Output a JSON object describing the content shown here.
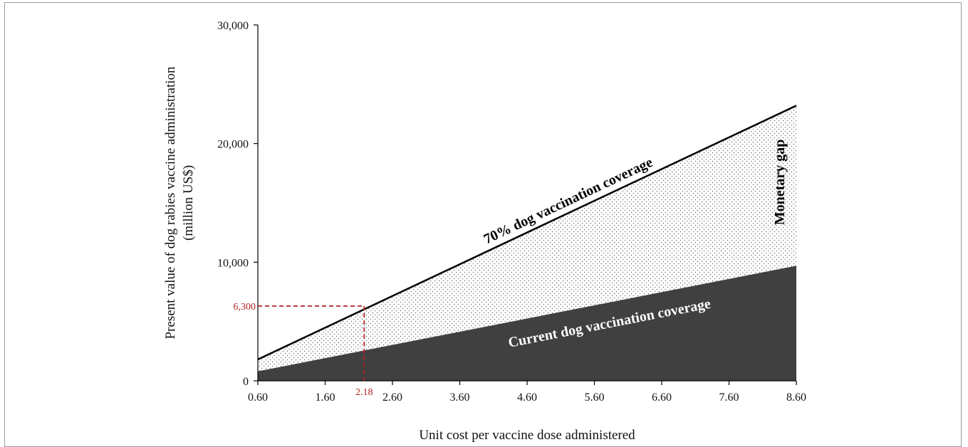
{
  "chart_data": {
    "type": "area",
    "title": "",
    "xlabel": "Unit cost per vaccine dose administered",
    "ylabel_line1": "Present value of dog rabies vaccine administration",
    "ylabel_line2": "(million US$)",
    "x": [
      0.6,
      8.6
    ],
    "xlim": [
      0.6,
      8.6
    ],
    "ylim": [
      0,
      30000
    ],
    "x_ticks": [
      "0.60",
      "1.60",
      "2.60",
      "3.60",
      "4.60",
      "5.60",
      "6.60",
      "7.60",
      "8.60"
    ],
    "x_tick_values": [
      0.6,
      1.6,
      2.6,
      3.6,
      4.6,
      5.6,
      6.6,
      7.6,
      8.6
    ],
    "y_ticks": [
      "0",
      "10,000",
      "20,000",
      "30,000"
    ],
    "y_tick_values": [
      0,
      10000,
      20000,
      30000
    ],
    "grid": false,
    "series": [
      {
        "name": "70% dog vaccination coverage",
        "values": [
          1800,
          23200
        ],
        "style": "line",
        "color": "#000000"
      },
      {
        "name": "Current dog vaccination coverage",
        "values": [
          800,
          9700
        ],
        "style": "filled-area",
        "color": "#404040"
      }
    ],
    "gap_region": {
      "name": "Monetary gap",
      "pattern": "dotted"
    },
    "annotation": {
      "x": 2.18,
      "y": 6300,
      "x_label": "2.18",
      "y_label": "6,300",
      "color": "#b22222"
    }
  }
}
